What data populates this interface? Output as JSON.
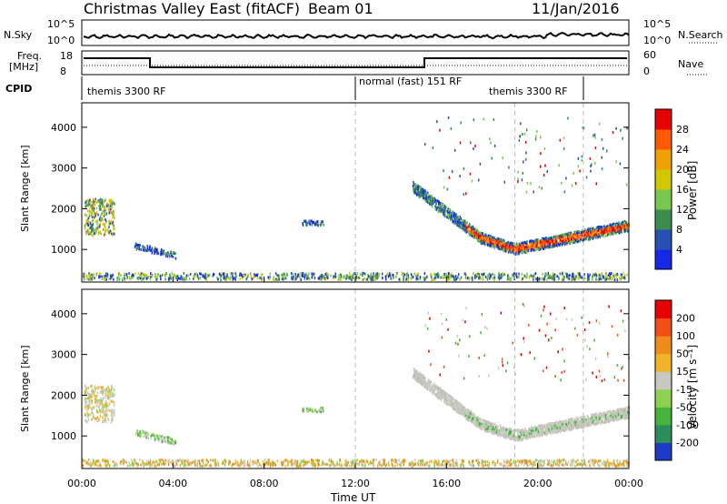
{
  "header": {
    "title": "Christmas Valley East (fitACF)",
    "beam": "Beam 01",
    "date": "11/Jan/2016"
  },
  "strip_labels": {
    "nsky": "N.Sky",
    "nsearch": "N.Search",
    "freq_line1": "Freq.",
    "freq_line2": "[MHz]",
    "nave": "Nave",
    "cpid": "CPID",
    "noise_top": "10^5",
    "noise_bottom": "10^0",
    "freq_top": "18",
    "freq_bottom": "8",
    "nave_top": "60",
    "nave_bottom": "0"
  },
  "cpid_segments": [
    {
      "label": "themis 3300 RF",
      "start_hour": 0
    },
    {
      "label": "normal (fast) 151 RF",
      "start_hour": 12
    },
    {
      "label": "themis 3300 RF",
      "start_hour": 22
    }
  ],
  "chart_data": [
    {
      "type": "heatmap",
      "name": "power",
      "ylabel": "Slant Range [km]",
      "xlabel": "Time UT",
      "xlim": [
        0,
        24
      ],
      "ylim": [
        200,
        4600
      ],
      "yticks": [
        1000,
        2000,
        3000,
        4000
      ],
      "xtick_labels": [
        "00:00",
        "04:00",
        "08:00",
        "12:00",
        "16:00",
        "20:00",
        "00:00"
      ],
      "colorbar": {
        "label": "Power [dB]",
        "ticks": [
          "28",
          "24",
          "20",
          "16",
          "12",
          "8",
          "4"
        ],
        "colors": [
          "#1428e6",
          "#2850b4",
          "#3c8c50",
          "#78c850",
          "#d2c800",
          "#f0a000",
          "#ff5a00",
          "#e60000"
        ]
      }
    },
    {
      "type": "heatmap",
      "name": "velocity",
      "ylabel": "Slant Range [km]",
      "xlabel": "Time UT",
      "xlim": [
        0,
        24
      ],
      "ylim": [
        200,
        4600
      ],
      "yticks": [
        1000,
        2000,
        3000,
        4000
      ],
      "xtick_labels": [
        "00:00",
        "04:00",
        "08:00",
        "12:00",
        "16:00",
        "20:00",
        "00:00"
      ],
      "colorbar": {
        "label": "Velocity [m s⁻¹]",
        "ticks": [
          "200",
          "100",
          "50",
          "15",
          "-15",
          "-50",
          "-100",
          "-200"
        ],
        "colors": [
          "#1e3cc8",
          "#2d8c5a",
          "#46b43c",
          "#8cd250",
          "#c8c8c0",
          "#f0b428",
          "#f08c1e",
          "#f05014",
          "#e60000"
        ]
      }
    }
  ]
}
